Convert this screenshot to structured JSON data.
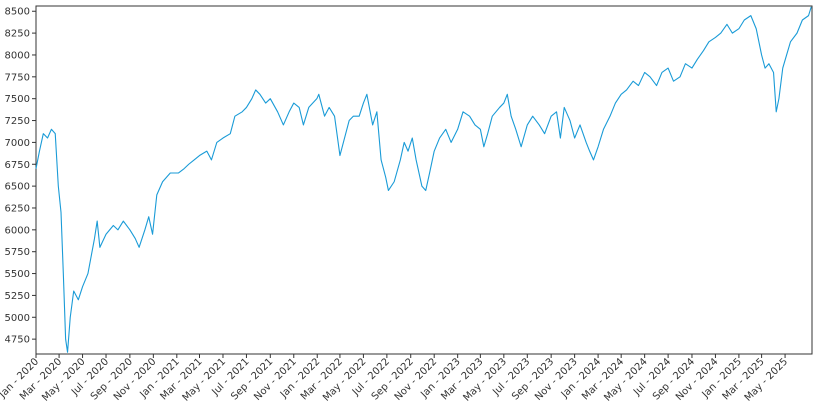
{
  "chart_data": {
    "type": "line",
    "title": "",
    "xlabel": "",
    "ylabel": "",
    "xlim": [
      "2020-01-01",
      "2025-07-10"
    ],
    "ylim": [
      4580,
      8560
    ],
    "grid": false,
    "legend": "none",
    "color": "#1a9bd7",
    "y_ticks": [
      4750,
      5000,
      5250,
      5500,
      5750,
      6000,
      6250,
      6500,
      6750,
      7000,
      7250,
      7500,
      7750,
      8000,
      8250,
      8500
    ],
    "x_ticks": [
      {
        "date": "2020-01-01",
        "label": "Jan - 2020"
      },
      {
        "date": "2020-03-01",
        "label": "Mar - 2020"
      },
      {
        "date": "2020-05-01",
        "label": "May - 2020"
      },
      {
        "date": "2020-07-01",
        "label": "Jul - 2020"
      },
      {
        "date": "2020-09-01",
        "label": "Sep - 2020"
      },
      {
        "date": "2020-11-01",
        "label": "Nov - 2020"
      },
      {
        "date": "2021-01-01",
        "label": "Jan - 2021"
      },
      {
        "date": "2021-03-01",
        "label": "Mar - 2021"
      },
      {
        "date": "2021-05-01",
        "label": "May - 2021"
      },
      {
        "date": "2021-07-01",
        "label": "Jul - 2021"
      },
      {
        "date": "2021-09-01",
        "label": "Sep - 2021"
      },
      {
        "date": "2021-11-01",
        "label": "Nov - 2021"
      },
      {
        "date": "2022-01-01",
        "label": "Jan - 2022"
      },
      {
        "date": "2022-03-01",
        "label": "Mar - 2022"
      },
      {
        "date": "2022-05-01",
        "label": "May - 2022"
      },
      {
        "date": "2022-07-01",
        "label": "Jul - 2022"
      },
      {
        "date": "2022-09-01",
        "label": "Sep - 2022"
      },
      {
        "date": "2022-11-01",
        "label": "Nov - 2022"
      },
      {
        "date": "2023-01-01",
        "label": "Jan - 2023"
      },
      {
        "date": "2023-03-01",
        "label": "Mar - 2023"
      },
      {
        "date": "2023-05-01",
        "label": "May - 2023"
      },
      {
        "date": "2023-07-01",
        "label": "Jul - 2023"
      },
      {
        "date": "2023-09-01",
        "label": "Sep - 2023"
      },
      {
        "date": "2023-11-01",
        "label": "Nov - 2023"
      },
      {
        "date": "2024-01-01",
        "label": "Jan - 2024"
      },
      {
        "date": "2024-03-01",
        "label": "Mar - 2024"
      },
      {
        "date": "2024-05-01",
        "label": "May - 2024"
      },
      {
        "date": "2024-07-01",
        "label": "Jul - 2024"
      },
      {
        "date": "2024-09-01",
        "label": "Sep - 2024"
      },
      {
        "date": "2024-11-01",
        "label": "Nov - 2024"
      },
      {
        "date": "2025-01-01",
        "label": "Jan - 2025"
      },
      {
        "date": "2025-03-01",
        "label": "Mar - 2025"
      },
      {
        "date": "2025-05-01",
        "label": "May - 2025"
      }
    ],
    "series": [
      {
        "points": [
          [
            "2020-01-01",
            6700
          ],
          [
            "2020-01-10",
            6900
          ],
          [
            "2020-01-20",
            7100
          ],
          [
            "2020-01-31",
            7050
          ],
          [
            "2020-02-10",
            7150
          ],
          [
            "2020-02-20",
            7100
          ],
          [
            "2020-02-28",
            6500
          ],
          [
            "2020-03-06",
            6200
          ],
          [
            "2020-03-12",
            5500
          ],
          [
            "2020-03-18",
            4750
          ],
          [
            "2020-03-23",
            4600
          ],
          [
            "2020-03-30",
            5000
          ],
          [
            "2020-04-08",
            5300
          ],
          [
            "2020-04-20",
            5200
          ],
          [
            "2020-05-01",
            5350
          ],
          [
            "2020-05-15",
            5500
          ],
          [
            "2020-06-01",
            5900
          ],
          [
            "2020-06-08",
            6100
          ],
          [
            "2020-06-15",
            5800
          ],
          [
            "2020-07-01",
            5950
          ],
          [
            "2020-07-20",
            6050
          ],
          [
            "2020-08-01",
            6000
          ],
          [
            "2020-08-15",
            6100
          ],
          [
            "2020-09-01",
            6000
          ],
          [
            "2020-09-15",
            5900
          ],
          [
            "2020-09-25",
            5800
          ],
          [
            "2020-10-10",
            6000
          ],
          [
            "2020-10-20",
            6150
          ],
          [
            "2020-10-30",
            5950
          ],
          [
            "2020-11-10",
            6400
          ],
          [
            "2020-11-25",
            6550
          ],
          [
            "2020-12-15",
            6650
          ],
          [
            "2021-01-05",
            6650
          ],
          [
            "2021-01-20",
            6700
          ],
          [
            "2021-02-01",
            6750
          ],
          [
            "2021-02-15",
            6800
          ],
          [
            "2021-03-01",
            6850
          ],
          [
            "2021-03-20",
            6900
          ],
          [
            "2021-04-01",
            6800
          ],
          [
            "2021-04-15",
            7000
          ],
          [
            "2021-05-01",
            7050
          ],
          [
            "2021-05-20",
            7100
          ],
          [
            "2021-06-01",
            7300
          ],
          [
            "2021-06-20",
            7350
          ],
          [
            "2021-07-01",
            7400
          ],
          [
            "2021-07-15",
            7500
          ],
          [
            "2021-07-25",
            7600
          ],
          [
            "2021-08-05",
            7550
          ],
          [
            "2021-08-20",
            7450
          ],
          [
            "2021-09-01",
            7500
          ],
          [
            "2021-09-20",
            7350
          ],
          [
            "2021-10-05",
            7200
          ],
          [
            "2021-10-20",
            7350
          ],
          [
            "2021-11-01",
            7450
          ],
          [
            "2021-11-15",
            7400
          ],
          [
            "2021-11-26",
            7200
          ],
          [
            "2021-12-10",
            7400
          ],
          [
            "2021-12-31",
            7500
          ],
          [
            "2022-01-05",
            7550
          ],
          [
            "2022-01-20",
            7300
          ],
          [
            "2022-02-01",
            7400
          ],
          [
            "2022-02-15",
            7300
          ],
          [
            "2022-03-01",
            6850
          ],
          [
            "2022-03-10",
            7000
          ],
          [
            "2022-03-25",
            7250
          ],
          [
            "2022-04-05",
            7300
          ],
          [
            "2022-04-20",
            7300
          ],
          [
            "2022-05-01",
            7450
          ],
          [
            "2022-05-10",
            7550
          ],
          [
            "2022-05-25",
            7200
          ],
          [
            "2022-06-05",
            7350
          ],
          [
            "2022-06-16",
            6800
          ],
          [
            "2022-06-28",
            6600
          ],
          [
            "2022-07-05",
            6450
          ],
          [
            "2022-07-20",
            6550
          ],
          [
            "2022-08-05",
            6800
          ],
          [
            "2022-08-15",
            7000
          ],
          [
            "2022-08-25",
            6900
          ],
          [
            "2022-09-05",
            7050
          ],
          [
            "2022-09-15",
            6800
          ],
          [
            "2022-09-30",
            6500
          ],
          [
            "2022-10-10",
            6450
          ],
          [
            "2022-10-20",
            6650
          ],
          [
            "2022-11-01",
            6900
          ],
          [
            "2022-11-15",
            7050
          ],
          [
            "2022-12-01",
            7150
          ],
          [
            "2022-12-15",
            7000
          ],
          [
            "2023-01-01",
            7150
          ],
          [
            "2023-01-15",
            7350
          ],
          [
            "2023-02-01",
            7300
          ],
          [
            "2023-02-15",
            7200
          ],
          [
            "2023-03-01",
            7150
          ],
          [
            "2023-03-10",
            6950
          ],
          [
            "2023-03-20",
            7100
          ],
          [
            "2023-04-01",
            7300
          ],
          [
            "2023-04-20",
            7400
          ],
          [
            "2023-05-01",
            7450
          ],
          [
            "2023-05-10",
            7550
          ],
          [
            "2023-05-20",
            7300
          ],
          [
            "2023-06-01",
            7150
          ],
          [
            "2023-06-15",
            6950
          ],
          [
            "2023-07-01",
            7200
          ],
          [
            "2023-07-15",
            7300
          ],
          [
            "2023-08-01",
            7200
          ],
          [
            "2023-08-15",
            7100
          ],
          [
            "2023-09-01",
            7300
          ],
          [
            "2023-09-15",
            7350
          ],
          [
            "2023-09-25",
            7050
          ],
          [
            "2023-10-05",
            7400
          ],
          [
            "2023-10-20",
            7250
          ],
          [
            "2023-11-01",
            7050
          ],
          [
            "2023-11-15",
            7200
          ],
          [
            "2023-12-01",
            7000
          ],
          [
            "2023-12-10",
            6900
          ],
          [
            "2023-12-20",
            6800
          ],
          [
            "2024-01-01",
            6950
          ],
          [
            "2024-01-15",
            7150
          ],
          [
            "2024-02-01",
            7300
          ],
          [
            "2024-02-15",
            7450
          ],
          [
            "2024-03-01",
            7550
          ],
          [
            "2024-03-15",
            7600
          ],
          [
            "2024-04-01",
            7700
          ],
          [
            "2024-04-15",
            7650
          ],
          [
            "2024-05-01",
            7800
          ],
          [
            "2024-05-15",
            7750
          ],
          [
            "2024-06-01",
            7650
          ],
          [
            "2024-06-15",
            7800
          ],
          [
            "2024-07-01",
            7850
          ],
          [
            "2024-07-15",
            7700
          ],
          [
            "2024-08-01",
            7750
          ],
          [
            "2024-08-15",
            7900
          ],
          [
            "2024-09-01",
            7850
          ],
          [
            "2024-09-15",
            7950
          ],
          [
            "2024-10-01",
            8050
          ],
          [
            "2024-10-15",
            8150
          ],
          [
            "2024-11-01",
            8200
          ],
          [
            "2024-11-15",
            8250
          ],
          [
            "2024-12-01",
            8350
          ],
          [
            "2024-12-15",
            8250
          ],
          [
            "2025-01-01",
            8300
          ],
          [
            "2025-01-15",
            8400
          ],
          [
            "2025-02-01",
            8450
          ],
          [
            "2025-02-15",
            8300
          ],
          [
            "2025-03-01",
            8000
          ],
          [
            "2025-03-10",
            7850
          ],
          [
            "2025-03-20",
            7900
          ],
          [
            "2025-04-01",
            7800
          ],
          [
            "2025-04-08",
            7350
          ],
          [
            "2025-04-15",
            7500
          ],
          [
            "2025-04-25",
            7850
          ],
          [
            "2025-05-05",
            8000
          ],
          [
            "2025-05-15",
            8150
          ],
          [
            "2025-06-01",
            8250
          ],
          [
            "2025-06-15",
            8400
          ],
          [
            "2025-07-01",
            8450
          ],
          [
            "2025-07-08",
            8550
          ]
        ]
      }
    ]
  }
}
